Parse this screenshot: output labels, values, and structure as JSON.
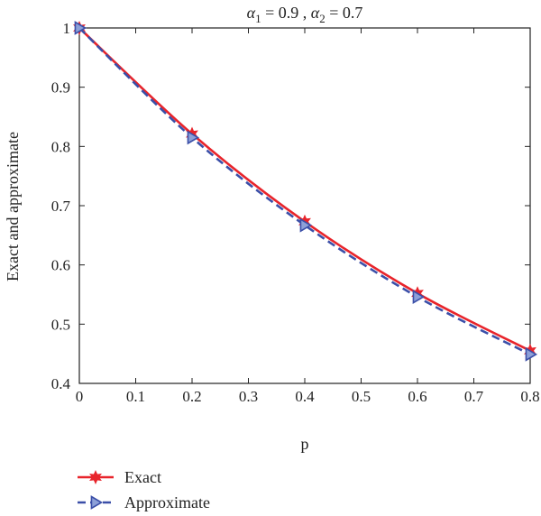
{
  "chart_data": {
    "type": "line",
    "title": "α1 = 0.9 , α2 = 0.7",
    "title_parts": {
      "a1_symbol": "α",
      "a1_sub": "1",
      "a1_eq": " = 0.9 , ",
      "a2_symbol": "α",
      "a2_sub": "2",
      "a2_eq": " = 0.7"
    },
    "xlabel": "p",
    "ylabel": "Exact and approximate",
    "xlim": [
      0,
      0.8
    ],
    "ylim": [
      0.4,
      1.0
    ],
    "x_ticks": [
      "0",
      "0.1",
      "0.2",
      "0.3",
      "0.4",
      "0.5",
      "0.6",
      "0.7",
      "0.8"
    ],
    "y_ticks": [
      "0.4",
      "0.5",
      "0.6",
      "0.7",
      "0.8",
      "0.9",
      "1"
    ],
    "x": [
      0,
      0.2,
      0.4,
      0.6,
      0.8
    ],
    "series": [
      {
        "name": "Exact",
        "values": [
          1.0,
          0.821,
          0.673,
          0.552,
          0.455
        ],
        "color": "#e8242b",
        "line_style": "solid",
        "marker": "star"
      },
      {
        "name": "Approximate",
        "values": [
          1.0,
          0.815,
          0.667,
          0.546,
          0.449
        ],
        "color": "#3b4fa8",
        "line_style": "dashed",
        "marker": "triangle-right"
      }
    ],
    "grid": false,
    "legend_placement": "bottom-left"
  }
}
